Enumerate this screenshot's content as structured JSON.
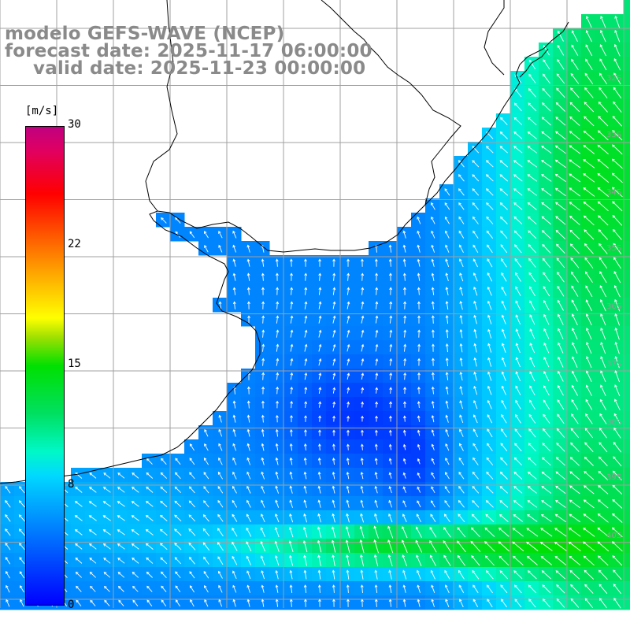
{
  "title": {
    "line1": "modelo GEFS-WAVE (NCEP)",
    "line2": "forecast date: 2025-11-17 06:00:00",
    "line3": "valid date: 2025-11-23 00:00:00"
  },
  "colorbar": {
    "unit": "[m/s]",
    "min": 0,
    "max": 30,
    "tick_labels": [
      "30",
      "22",
      "15",
      "8",
      "0"
    ],
    "tick_values": [
      30,
      22,
      15,
      8,
      0
    ]
  },
  "lat_labels": [
    "32S",
    "33S",
    "34S",
    "35S",
    "36S",
    "37S",
    "38S",
    "39S",
    "40S"
  ],
  "colors": {
    "land": "#ffffff",
    "coast": "#000000",
    "grid": "#a0a0a0",
    "arrow": "#ffffff",
    "title": "#8a8a8a"
  },
  "chart_data": {
    "type": "heatmap",
    "variable": "wind speed",
    "unit": "[m/s]",
    "scale_range": [
      0,
      30
    ],
    "features": {
      "calm_core_speed": 2,
      "coastal_shelf_speed": 5,
      "offshore_east_speed": 11,
      "southern_band_speed": 13,
      "southern_band_peak": 15
    }
  }
}
